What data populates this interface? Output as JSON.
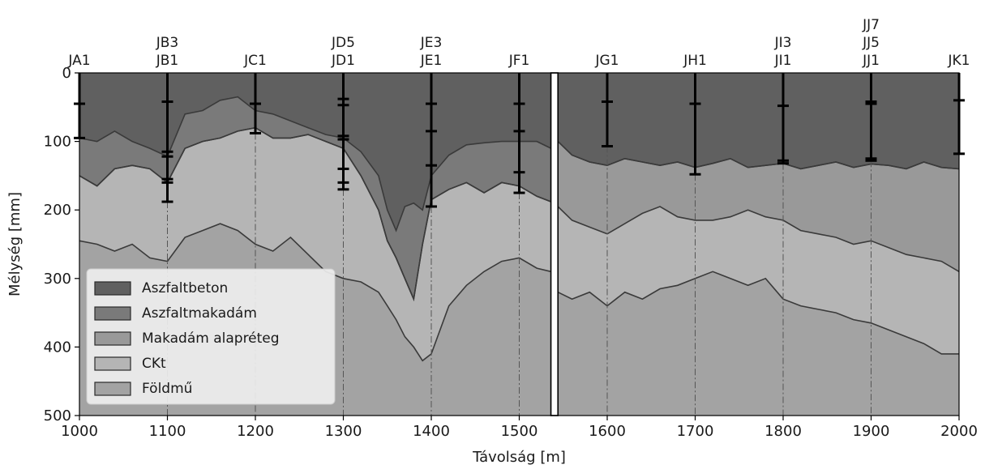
{
  "chart_data": {
    "type": "area",
    "xlabel": "Távolság [m]",
    "ylabel": "Mélység [mm]",
    "xlim": [
      1000,
      2000
    ],
    "ylim": [
      500,
      0
    ],
    "xticks": [
      1000,
      1100,
      1200,
      1300,
      1400,
      1500,
      1600,
      1700,
      1800,
      1900,
      2000
    ],
    "yticks": [
      0,
      100,
      200,
      300,
      400,
      500
    ],
    "gap": [
      1536,
      1544
    ],
    "legend_position": "lower-left",
    "series": [
      {
        "name": "Aszfaltbeton",
        "color": "#606060"
      },
      {
        "name": "Aszfaltmakadám",
        "color": "#7a7a7a"
      },
      {
        "name": "Makadám alapréteg",
        "color": "#999999"
      },
      {
        "name": "CKt",
        "color": "#b5b5b5"
      },
      {
        "name": "Földmű",
        "color": "#a3a3a3"
      }
    ],
    "boundaries": {
      "left_x": [
        1000,
        1020,
        1040,
        1060,
        1080,
        1100,
        1120,
        1140,
        1160,
        1180,
        1200,
        1220,
        1240,
        1260,
        1280,
        1300,
        1320,
        1340,
        1350,
        1360,
        1370,
        1380,
        1390,
        1400,
        1420,
        1440,
        1460,
        1480,
        1500,
        1520,
        1536
      ],
      "right_x": [
        1544,
        1560,
        1580,
        1600,
        1620,
        1640,
        1660,
        1680,
        1700,
        1720,
        1740,
        1760,
        1780,
        1800,
        1820,
        1840,
        1860,
        1880,
        1900,
        1920,
        1940,
        1960,
        1980,
        2000
      ],
      "aszfaltbeton_bottom": {
        "left": [
          95,
          100,
          85,
          100,
          110,
          122,
          60,
          55,
          40,
          35,
          55,
          60,
          70,
          80,
          90,
          95,
          115,
          150,
          200,
          230,
          195,
          190,
          200,
          150,
          120,
          105,
          102,
          100,
          100,
          100,
          110
        ],
        "right": [
          100,
          120,
          130,
          135,
          125,
          130,
          135,
          130,
          138,
          132,
          125,
          138,
          135,
          132,
          140,
          135,
          130,
          138,
          133,
          135,
          140,
          130,
          138,
          140
        ]
      },
      "aszfaltmakadam_bottom": {
        "left": [
          150,
          165,
          140,
          135,
          140,
          160,
          110,
          100,
          95,
          85,
          80,
          95,
          95,
          90,
          100,
          110,
          150,
          200,
          245,
          270,
          300,
          330,
          250,
          185,
          170,
          160,
          175,
          160,
          165,
          180,
          188
        ],
        "right": [
          100,
          120,
          130,
          135,
          125,
          130,
          135,
          130,
          138,
          132,
          125,
          138,
          135,
          132,
          140,
          135,
          130,
          138,
          133,
          135,
          140,
          130,
          138,
          140
        ]
      },
      "makadam_bottom": {
        "left": [
          150,
          165,
          140,
          135,
          140,
          160,
          110,
          100,
          95,
          85,
          80,
          95,
          95,
          90,
          100,
          110,
          150,
          200,
          245,
          270,
          300,
          330,
          250,
          185,
          170,
          160,
          175,
          160,
          165,
          180,
          188
        ],
        "right": [
          195,
          215,
          225,
          235,
          220,
          205,
          195,
          210,
          215,
          215,
          210,
          200,
          210,
          215,
          230,
          235,
          240,
          250,
          245,
          255,
          265,
          270,
          275,
          290
        ]
      },
      "ckt_bottom": {
        "left": [
          245,
          250,
          260,
          250,
          270,
          275,
          240,
          230,
          220,
          230,
          250,
          260,
          240,
          265,
          290,
          300,
          305,
          320,
          340,
          360,
          385,
          400,
          420,
          410,
          340,
          310,
          290,
          275,
          270,
          285,
          290
        ],
        "right": [
          320,
          330,
          320,
          340,
          320,
          330,
          315,
          310,
          300,
          290,
          300,
          310,
          300,
          330,
          340,
          345,
          350,
          360,
          365,
          375,
          385,
          395,
          410,
          410
        ]
      }
    },
    "boreholes": [
      {
        "x": 1000,
        "labels": [
          "JA1"
        ],
        "bottom": 95,
        "marks": [
          45,
          95
        ]
      },
      {
        "x": 1100,
        "labels": [
          "JB3",
          "JB1"
        ],
        "bottom": 188,
        "marks": [
          42,
          115,
          122,
          155,
          160,
          188
        ]
      },
      {
        "x": 1200,
        "labels": [
          "JC1"
        ],
        "bottom": 88,
        "marks": [
          45,
          88
        ]
      },
      {
        "x": 1300,
        "labels": [
          "JD5",
          "JD1"
        ],
        "bottom": 170,
        "marks": [
          38,
          47,
          92,
          97,
          140,
          160,
          170
        ]
      },
      {
        "x": 1400,
        "labels": [
          "JE3",
          "JE1"
        ],
        "bottom": 195,
        "marks": [
          45,
          85,
          135,
          195
        ]
      },
      {
        "x": 1500,
        "labels": [
          "JF1"
        ],
        "bottom": 175,
        "marks": [
          45,
          85,
          145,
          175
        ]
      },
      {
        "x": 1600,
        "labels": [
          "JG1"
        ],
        "bottom": 107,
        "marks": [
          42,
          107
        ]
      },
      {
        "x": 1700,
        "labels": [
          "JH1"
        ],
        "bottom": 148,
        "marks": [
          45,
          148
        ]
      },
      {
        "x": 1800,
        "labels": [
          "JI3",
          "JI1"
        ],
        "bottom": 132,
        "marks": [
          48,
          128,
          132
        ]
      },
      {
        "x": 1900,
        "labels": [
          "JJ7",
          "JJ5",
          "JJ1"
        ],
        "bottom": 128,
        "marks": [
          42,
          45,
          125,
          128
        ]
      },
      {
        "x": 2000,
        "labels": [
          "JK1"
        ],
        "bottom": 118,
        "marks": [
          40,
          118
        ]
      }
    ]
  }
}
